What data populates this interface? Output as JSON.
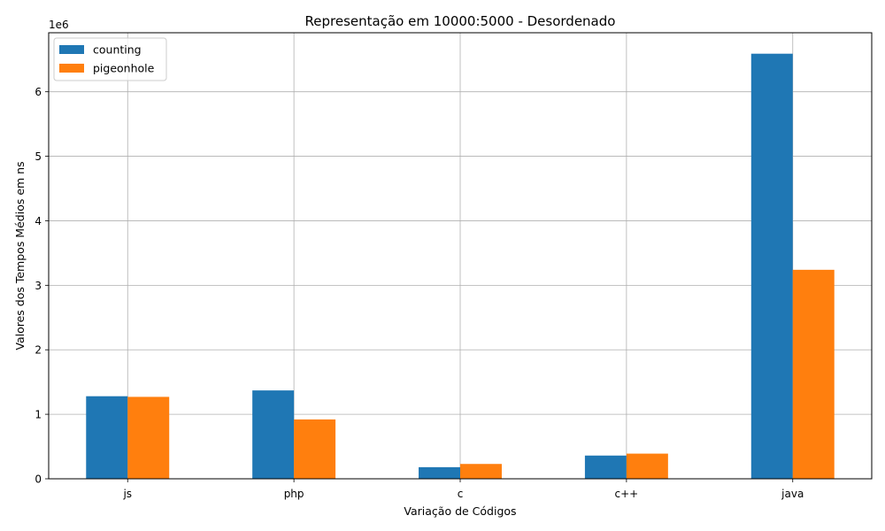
{
  "chart_data": {
    "type": "bar",
    "title": "Representação em 10000:5000 - Desordenado",
    "xlabel": "Variação de Códigos",
    "ylabel": "Valores dos Tempos Médios em ns",
    "y_offset_label": "1e6",
    "categories": [
      "js",
      "php",
      "c",
      "c++",
      "java"
    ],
    "series": [
      {
        "name": "counting",
        "color": "#1f77b4",
        "values": [
          1280000,
          1370000,
          180000,
          360000,
          6590000
        ]
      },
      {
        "name": "pigeonhole",
        "color": "#ff7f0e",
        "values": [
          1270000,
          920000,
          230000,
          390000,
          3240000
        ]
      }
    ],
    "ylim": [
      0,
      6915000
    ],
    "yticks": [
      0,
      1000000,
      2000000,
      3000000,
      4000000,
      5000000,
      6000000
    ],
    "ytick_labels": [
      "0",
      "1",
      "2",
      "3",
      "4",
      "5",
      "6"
    ],
    "grid": true,
    "legend_position": "top-left"
  }
}
